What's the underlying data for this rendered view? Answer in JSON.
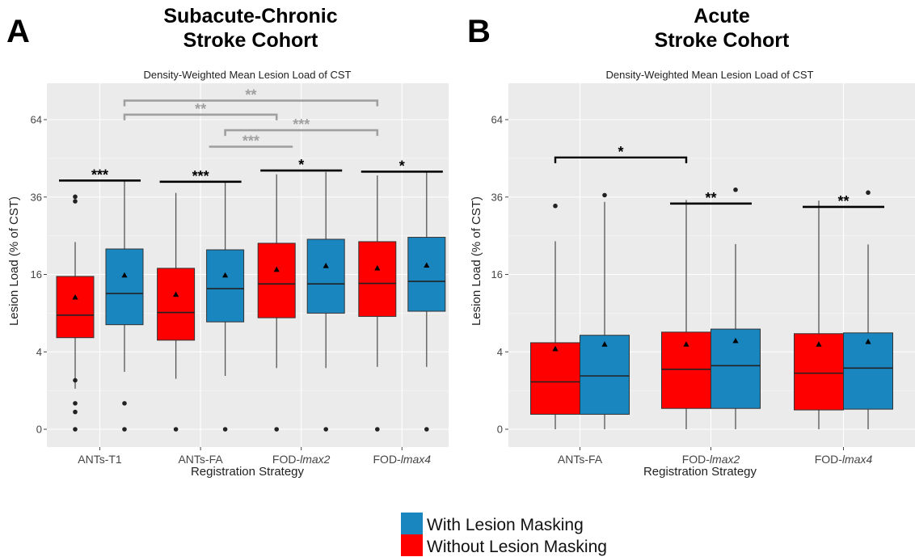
{
  "colors": {
    "with_mask": "#1a86c0",
    "without_mask": "#ff0000",
    "panel_bg": "#ebebeb",
    "grid": "#ffffff",
    "sig_black": "#000000",
    "sig_gray": "#a0a0a0"
  },
  "legend": {
    "with_label": "With Lesion Masking",
    "without_label": "Without Lesion Masking"
  },
  "chart_data": [
    {
      "type": "box",
      "panel_letter": "A",
      "cohort_title_line1": "Subacute-Chronic",
      "cohort_title_line2": "Stroke Cohort",
      "title": "Density-Weighted Mean Lesion Load of CST",
      "xlabel": "Registration Strategy",
      "ylabel": "Lesion Load (% of CST)",
      "y_scale": "sqrt",
      "y_ticks": [
        0,
        4,
        16,
        36,
        64
      ],
      "ylim": [
        0,
        81
      ],
      "categories": [
        {
          "prefix": "ANTs-T1",
          "suffix": ""
        },
        {
          "prefix": "ANTs-FA",
          "suffix": ""
        },
        {
          "prefix": "FOD-",
          "suffix": "lmax2"
        },
        {
          "prefix": "FOD-",
          "suffix": "lmax4"
        }
      ],
      "series": [
        {
          "name": "Without Lesion Masking",
          "key": "without",
          "boxes": [
            {
              "low": 1.1,
              "q1": 5.6,
              "median": 8.7,
              "q3": 15.6,
              "high": 23.4,
              "mean": 11.6,
              "outliers": [
                0,
                0.2,
                0.45,
                1.6,
                34.7,
                36.1
              ]
            },
            {
              "low": 1.7,
              "q1": 5.3,
              "median": 9.1,
              "q3": 17.3,
              "high": 37.3,
              "mean": 12.1,
              "outliers": [
                0
              ]
            },
            {
              "low": 2.5,
              "q1": 8.3,
              "median": 14.1,
              "q3": 23.1,
              "high": 43.4,
              "mean": 17.0,
              "outliers": [
                0
              ]
            },
            {
              "low": 2.6,
              "q1": 8.5,
              "median": 14.2,
              "q3": 23.5,
              "high": 43.0,
              "mean": 17.3,
              "outliers": [
                0
              ]
            }
          ]
        },
        {
          "name": "With Lesion Masking",
          "key": "with",
          "boxes": [
            {
              "low": 2.2,
              "q1": 7.3,
              "median": 12.3,
              "q3": 21.7,
              "high": 41.2,
              "mean": 15.8,
              "outliers": [
                0,
                0.45
              ]
            },
            {
              "low": 1.9,
              "q1": 7.7,
              "median": 13.2,
              "q3": 21.5,
              "high": 40.7,
              "mean": 15.8,
              "outliers": [
                0
              ]
            },
            {
              "low": 2.5,
              "q1": 9.0,
              "median": 14.1,
              "q3": 24.1,
              "high": 44.2,
              "mean": 17.8,
              "outliers": [
                0
              ]
            },
            {
              "low": 2.6,
              "q1": 9.3,
              "median": 14.6,
              "q3": 24.6,
              "high": 44.2,
              "mean": 17.9,
              "outliers": [
                0
              ]
            }
          ]
        }
      ],
      "significance": [
        {
          "a": [
            0,
            "without"
          ],
          "b": [
            0,
            "with"
          ],
          "y": 41.3,
          "label": "***",
          "color": "sig_black"
        },
        {
          "a": [
            1,
            "without"
          ],
          "b": [
            1,
            "with"
          ],
          "y": 40.9,
          "label": "***",
          "color": "sig_black"
        },
        {
          "a": [
            2,
            "without"
          ],
          "b": [
            2,
            "with"
          ],
          "y": 44.7,
          "label": "*",
          "color": "sig_black"
        },
        {
          "a": [
            3,
            "without"
          ],
          "b": [
            3,
            "with"
          ],
          "y": 44.3,
          "label": "*",
          "color": "sig_black"
        },
        {
          "a": [
            1,
            "with"
          ],
          "b": [
            2,
            "without"
          ],
          "y": 53.3,
          "label": "***",
          "color": "sig_gray"
        },
        {
          "a": [
            1,
            "with"
          ],
          "b": [
            3,
            "without"
          ],
          "y": 59.7,
          "label": "***",
          "color": "sig_gray"
        },
        {
          "a": [
            0,
            "with"
          ],
          "b": [
            2,
            "without"
          ],
          "y": 66.1,
          "label": "**",
          "color": "sig_gray"
        },
        {
          "a": [
            0,
            "with"
          ],
          "b": [
            3,
            "without"
          ],
          "y": 72.1,
          "label": "**",
          "color": "sig_gray"
        }
      ]
    },
    {
      "type": "box",
      "panel_letter": "B",
      "cohort_title_line1": "Acute",
      "cohort_title_line2": "Stroke Cohort",
      "title": "Density-Weighted Mean Lesion Load of CST",
      "xlabel": "Registration Strategy",
      "ylabel": "Lesion Load (% of CST)",
      "y_scale": "sqrt",
      "y_ticks": [
        0,
        4,
        16,
        36,
        64
      ],
      "ylim": [
        0,
        81
      ],
      "categories": [
        {
          "prefix": "ANTs-FA",
          "suffix": ""
        },
        {
          "prefix": "FOD-",
          "suffix": "lmax2"
        },
        {
          "prefix": "FOD-",
          "suffix": "lmax4"
        }
      ],
      "series": [
        {
          "name": "Without Lesion Masking",
          "key": "without",
          "boxes": [
            {
              "low": 0,
              "q1": 0.15,
              "median": 1.5,
              "q3": 5.0,
              "high": 23.6,
              "mean": 4.3,
              "outliers": [
                33.3
              ]
            },
            {
              "low": 0,
              "q1": 0.29,
              "median": 2.4,
              "q3": 6.3,
              "high": 35.1,
              "mean": 4.8,
              "outliers": []
            },
            {
              "low": 0,
              "q1": 0.25,
              "median": 2.1,
              "q3": 6.1,
              "high": 34.9,
              "mean": 4.8,
              "outliers": []
            }
          ]
        },
        {
          "name": "With Lesion Masking",
          "key": "with",
          "boxes": [
            {
              "low": 0,
              "q1": 0.15,
              "median": 1.9,
              "q3": 5.9,
              "high": 34.5,
              "mean": 4.8,
              "outliers": [
                36.6
              ]
            },
            {
              "low": 0,
              "q1": 0.29,
              "median": 2.7,
              "q3": 6.7,
              "high": 22.9,
              "mean": 5.2,
              "outliers": [
                38.3
              ]
            },
            {
              "low": 0,
              "q1": 0.27,
              "median": 2.5,
              "q3": 6.2,
              "high": 22.8,
              "mean": 5.1,
              "outliers": [
                37.4
              ]
            }
          ]
        }
      ],
      "significance": [
        {
          "a": [
            0,
            "without"
          ],
          "b": [
            1,
            "without"
          ],
          "y": 49.3,
          "label": "*",
          "color": "sig_black"
        },
        {
          "a": [
            1,
            "without"
          ],
          "b": [
            1,
            "with"
          ],
          "y": 34.0,
          "label": "**",
          "color": "sig_black"
        },
        {
          "a": [
            2,
            "without"
          ],
          "b": [
            2,
            "with"
          ],
          "y": 33.0,
          "label": "**",
          "color": "sig_black"
        }
      ]
    }
  ]
}
